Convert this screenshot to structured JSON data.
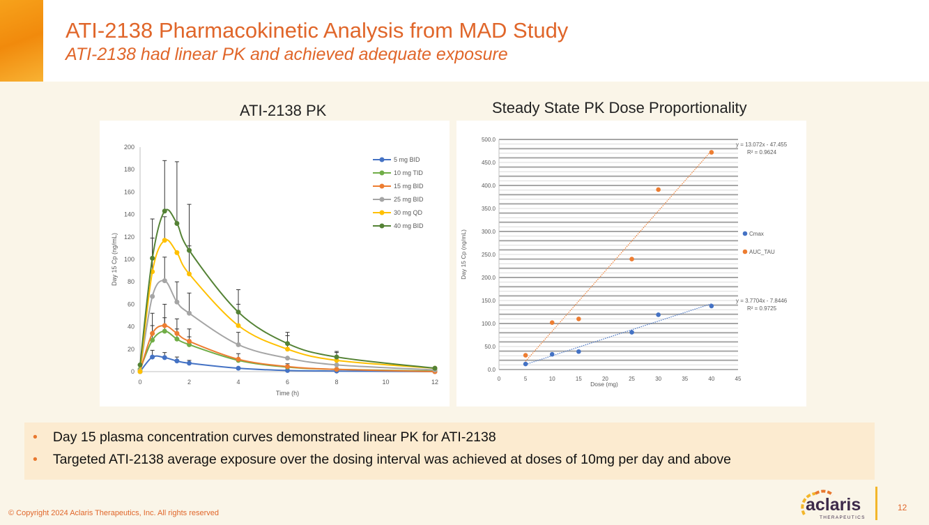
{
  "header": {
    "title": "ATI-2138 Pharmacokinetic Analysis from MAD Study",
    "subtitle": "ATI-2138 had linear PK and achieved adequate exposure"
  },
  "chart_data": [
    {
      "type": "line",
      "title": "ATI-2138 PK",
      "xlabel": "Time (h)",
      "ylabel": "Day 15 Cp (ng/mL)",
      "xlim": [
        0,
        12
      ],
      "ylim": [
        0,
        200
      ],
      "xticks": [
        0,
        2,
        4,
        6,
        8,
        10,
        12
      ],
      "yticks": [
        0,
        20,
        40,
        60,
        80,
        100,
        120,
        140,
        160,
        180,
        200
      ],
      "legend": "top-right",
      "grid": false,
      "x": [
        0,
        0.5,
        1,
        1.5,
        2,
        4,
        6,
        8,
        12
      ],
      "series": [
        {
          "name": "5 mg BID",
          "color": "#4472c4",
          "values": [
            0,
            13,
            12.5,
            9.5,
            7.5,
            3,
            1,
            0.5,
            0
          ],
          "error_upper": [
            null,
            19,
            17,
            13,
            10,
            null,
            null,
            null,
            null
          ]
        },
        {
          "name": "10 mg TID",
          "color": "#70ad47",
          "values": [
            2,
            28,
            36,
            29,
            24,
            10,
            4,
            2,
            0.5
          ],
          "error_upper": [
            null,
            41,
            48,
            38,
            31,
            null,
            null,
            null,
            null
          ]
        },
        {
          "name": "15 mg BID",
          "color": "#ed7d31",
          "values": [
            0.5,
            34,
            41,
            34,
            27,
            11,
            4.5,
            2,
            0
          ],
          "error_upper": [
            null,
            52,
            60,
            47,
            38,
            16,
            7,
            null,
            null
          ]
        },
        {
          "name": "25 mg BID",
          "color": "#a5a5a5",
          "values": [
            1,
            67,
            81,
            62,
            52,
            24,
            12,
            6,
            1.5
          ],
          "error_upper": [
            null,
            null,
            102,
            80,
            70,
            35,
            null,
            null,
            null
          ]
        },
        {
          "name": "30 mg QD",
          "color": "#ffc000",
          "values": [
            0,
            89,
            117,
            106,
            87,
            41,
            20,
            10,
            3
          ],
          "error_upper": [
            null,
            119,
            138,
            null,
            112,
            60,
            32,
            17,
            null
          ]
        },
        {
          "name": "40 mg BID",
          "color": "#548235",
          "values": [
            6,
            101,
            143,
            132,
            108,
            53,
            25,
            13,
            3
          ],
          "error_upper": [
            null,
            136,
            188,
            187,
            149,
            73,
            35,
            18,
            4
          ]
        }
      ]
    },
    {
      "type": "scatter",
      "title": "Steady State PK Dose Proportionality",
      "xlabel": "Dose (mg)",
      "ylabel": "Day 15 Cp (ng/mL)",
      "xlim": [
        0,
        45
      ],
      "ylim": [
        0,
        500
      ],
      "xticks": [
        0,
        5,
        10,
        15,
        20,
        25,
        30,
        35,
        40,
        45
      ],
      "yticks": [
        "0.0",
        "50.0",
        "100.0",
        "150.0",
        "200.0",
        "250.0",
        "300.0",
        "350.0",
        "400.0",
        "450.0",
        "500.0"
      ],
      "legend": "right",
      "grid": true,
      "series": [
        {
          "name": "Cmax",
          "color": "#4472c4",
          "x": [
            5,
            10,
            15,
            25,
            30,
            40
          ],
          "values": [
            12,
            33,
            39,
            81,
            119,
            138
          ],
          "trendline": {
            "slope": 3.7704,
            "intercept": -7.8446,
            "equation": "y = 3.7704x - 7.8446",
            "r2": "R² = 0.9725"
          }
        },
        {
          "name": "AUC_TAU",
          "color": "#ed7d31",
          "x": [
            5,
            10,
            15,
            25,
            30,
            40
          ],
          "values": [
            31,
            102,
            110,
            240,
            391,
            472
          ],
          "trendline": {
            "slope": 13.072,
            "intercept": -47.455,
            "equation": "y = 13.072x - 47.455",
            "r2": "R² = 0.9624"
          }
        }
      ]
    }
  ],
  "bullets": [
    "Day 15 plasma concentration curves demonstrated linear PK for ATI-2138",
    "Targeted ATI-2138 average exposure over the dosing interval was achieved at doses of 10mg per day and above"
  ],
  "bullet_marker": "•",
  "footer": {
    "copyright": "© Copyright 2024 Aclaris Therapeutics, Inc. All rights reserved",
    "page": "12",
    "logo_name": "aclaris",
    "logo_sub": "THERAPEUTICS"
  }
}
